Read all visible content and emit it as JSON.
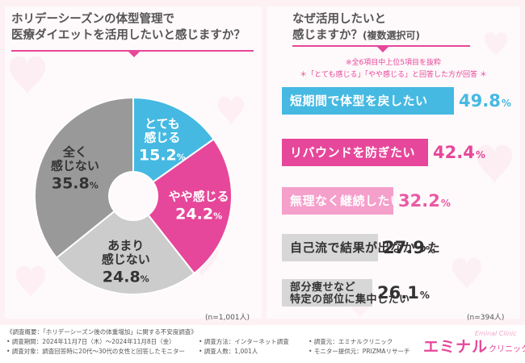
{
  "left_question": {
    "line1": "ホリデーシーズンの体型管理で",
    "line2": "医療ダイエットを活用したいと感じますか？"
  },
  "right_question": {
    "line1": "なぜ活用したいと",
    "line2": "感じますか？",
    "line2_small": "(複数選択可)"
  },
  "notes": {
    "note1": "※全6項目中上位5項目を抜粋",
    "note2": "＊「とても感じる」「やや感じる」と回答した方が回答 ＊"
  },
  "sample_left": "(n=1,001人)",
  "sample_right": "(n=394人)",
  "chart_data": [
    {
      "type": "pie",
      "title": "ホリデーシーズンの体型管理で医療ダイエットを活用したいと感じますか？",
      "slices": [
        {
          "label_line1": "とても",
          "label_line2": "感じる",
          "value": 15.2,
          "value_text": "15.2",
          "color": "#45b9e2",
          "text_color": "#ffffff"
        },
        {
          "label_line1": "やや感じる",
          "label_line2": "",
          "value": 24.2,
          "value_text": "24.2",
          "color": "#e6479a",
          "text_color": "#ffffff"
        },
        {
          "label_line1": "あまり",
          "label_line2": "感じない",
          "value": 24.8,
          "value_text": "24.8",
          "color": "#cccccc",
          "text_color": "#333333"
        },
        {
          "label_line1": "全く",
          "label_line2": "感じない",
          "value": 35.8,
          "value_text": "35.8",
          "color": "#999999",
          "text_color": "#333333"
        }
      ],
      "unit": "%"
    },
    {
      "type": "bar",
      "title": "なぜ活用したいと感じますか？(複数選択可)",
      "orientation": "horizontal",
      "xlim": [
        0,
        100
      ],
      "bars": [
        {
          "label": "短期間で体型を戻したい",
          "label2": "",
          "value": 49.8,
          "value_text": "49.8",
          "color": "#45b9e2",
          "text_color": "#ffffff",
          "value_color": "#45b9e2"
        },
        {
          "label": "リバウンドを防ぎたい",
          "label2": "",
          "value": 42.4,
          "value_text": "42.4",
          "color": "#e6479a",
          "text_color": "#ffffff",
          "value_color": "#e6479a"
        },
        {
          "label": "無理なく継続したい",
          "label2": "",
          "value": 32.2,
          "value_text": "32.2",
          "color": "#f59fcb",
          "text_color": "#ffffff",
          "value_color": "#ea5aa5"
        },
        {
          "label": "自己流で結果が出なかった",
          "label2": "",
          "value": 27.9,
          "value_text": "27.9",
          "color": "#d7d7d7",
          "text_color": "#333333",
          "value_color": "#333333"
        },
        {
          "label": "部分痩せなど",
          "label2": "特定の部位に集中したい",
          "value": 26.1,
          "value_text": "26.1",
          "color": "#d7d7d7",
          "text_color": "#333333",
          "value_color": "#333333"
        }
      ],
      "unit": "%"
    }
  ],
  "footer": {
    "line1": "《調査概要：「ホリデーシーズン後の体重増加」に関する不安度調査》",
    "line2a": "• 調査期間：2024年11月7日（木）〜2024年11月8日（金）",
    "line2b": "• 調査方法：インターネット調査",
    "line2c": "• 調査元：エミナルクリニック",
    "line3a": "• 調査対象：調査回答時に20代〜30代の女性と回答したモニター",
    "line3b": "• 調査人数：1,001人",
    "line3c": "• モニター提供元：PRIZMAリサーチ"
  },
  "logo": {
    "main": "エミナル",
    "sub": "クリニック",
    "script": "Eminal Clinic"
  }
}
